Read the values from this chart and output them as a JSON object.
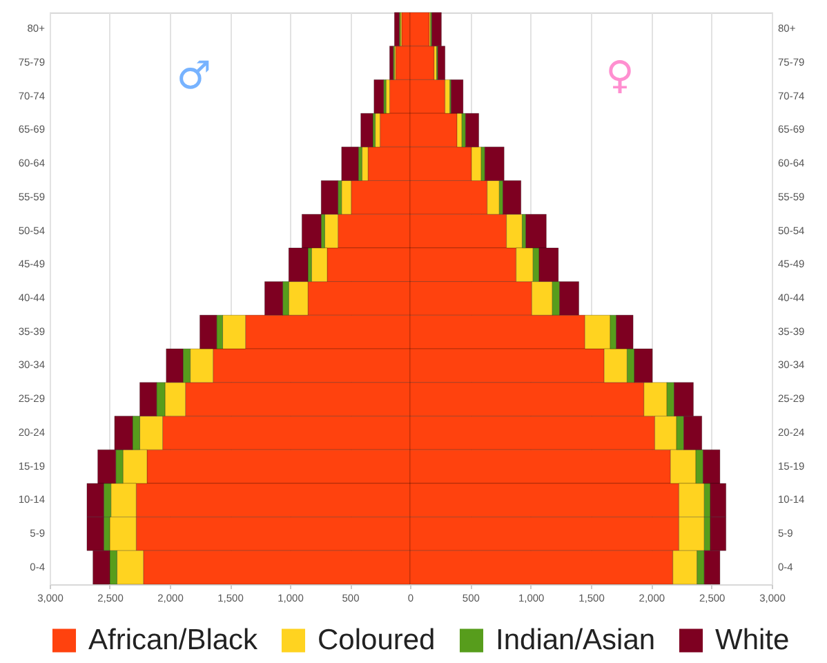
{
  "chart_data": [
    {
      "type": "bar",
      "orientation": "horizontal",
      "stacked": true,
      "grid": "x",
      "legend": "bottom",
      "annotations": [
        "♂"
      ],
      "categories": [
        "80+",
        "75-79",
        "70-74",
        "65-69",
        "60-64",
        "55-59",
        "50-54",
        "45-49",
        "40-44",
        "35-39",
        "30-34",
        "25-29",
        "20-24",
        "15-19",
        "10-14",
        "5-9",
        "0-4"
      ],
      "xlim": [
        3000,
        0
      ],
      "xticks": [
        {
          "value": 3000,
          "label": "3,000"
        },
        {
          "value": 2500,
          "label": "2,500"
        },
        {
          "value": 2000,
          "label": "2,000"
        },
        {
          "value": 1500,
          "label": "1,500"
        },
        {
          "value": 1000,
          "label": "1,000"
        },
        500,
        {
          "value": 0,
          "label": null
        }
      ],
      "series": [
        {
          "name": "African/Black",
          "color": "#ff420e",
          "values": [
            70,
            120,
            170,
            250,
            350,
            490,
            600,
            690,
            850,
            1370,
            1640,
            1870,
            2060,
            2190,
            2280,
            2280,
            2220
          ]
        },
        {
          "name": "Coloured",
          "color": "#ffd320",
          "values": [
            10,
            10,
            30,
            40,
            50,
            80,
            110,
            130,
            160,
            190,
            190,
            170,
            190,
            200,
            210,
            220,
            220
          ]
        },
        {
          "name": "Indian/Asian",
          "color": "#579d1c",
          "values": [
            10,
            10,
            20,
            20,
            30,
            30,
            30,
            30,
            50,
            50,
            60,
            70,
            60,
            60,
            60,
            50,
            60
          ]
        },
        {
          "name": "White",
          "color": "#7e0021",
          "values": [
            40,
            30,
            80,
            100,
            140,
            140,
            160,
            160,
            150,
            140,
            140,
            140,
            150,
            150,
            140,
            140,
            140
          ]
        }
      ]
    },
    {
      "type": "bar",
      "orientation": "horizontal",
      "stacked": true,
      "grid": "x",
      "legend": "bottom",
      "annotations": [
        "♀"
      ],
      "categories": [
        "80+",
        "75-79",
        "70-74",
        "65-69",
        "60-64",
        "55-59",
        "50-54",
        "45-49",
        "40-44",
        "35-39",
        "30-34",
        "25-29",
        "20-24",
        "15-19",
        "10-14",
        "5-9",
        "0-4"
      ],
      "xlim": [
        0,
        3000
      ],
      "xticks": [
        0,
        500,
        {
          "value": 1000,
          "label": "1,000"
        },
        {
          "value": 1500,
          "label": "1,500"
        },
        {
          "value": 2000,
          "label": "2,000"
        },
        {
          "value": 2500,
          "label": "2,500"
        },
        {
          "value": 3000,
          "label": "3,000"
        }
      ],
      "series": [
        {
          "name": "African/Black",
          "color": "#ff420e",
          "values": [
            160,
            200,
            290,
            390,
            510,
            640,
            800,
            880,
            1010,
            1450,
            1610,
            1940,
            2030,
            2160,
            2230,
            2230,
            2180
          ]
        },
        {
          "name": "Coloured",
          "color": "#ffd320",
          "values": [
            10,
            20,
            40,
            40,
            80,
            100,
            130,
            140,
            170,
            210,
            190,
            190,
            180,
            210,
            210,
            210,
            200
          ]
        },
        {
          "name": "Indian/Asian",
          "color": "#579d1c",
          "values": [
            10,
            10,
            10,
            30,
            30,
            30,
            30,
            50,
            60,
            50,
            60,
            60,
            60,
            60,
            50,
            50,
            60
          ]
        },
        {
          "name": "White",
          "color": "#7e0021",
          "values": [
            80,
            60,
            100,
            110,
            160,
            150,
            170,
            160,
            160,
            140,
            150,
            160,
            150,
            140,
            130,
            130,
            130
          ]
        }
      ]
    }
  ]
}
